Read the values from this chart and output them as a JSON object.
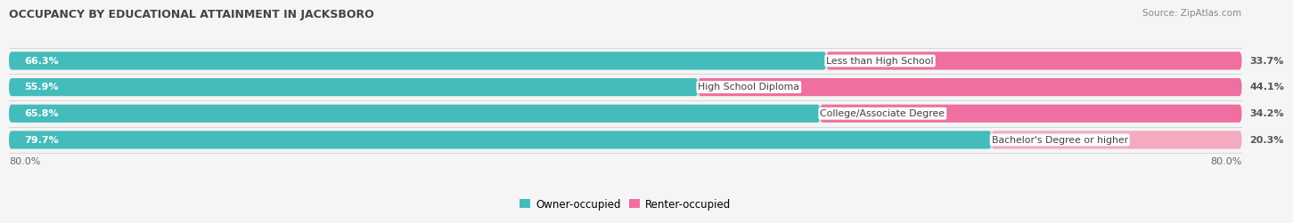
{
  "title": "OCCUPANCY BY EDUCATIONAL ATTAINMENT IN JACKSBORO",
  "source": "Source: ZipAtlas.com",
  "categories": [
    "Less than High School",
    "High School Diploma",
    "College/Associate Degree",
    "Bachelor's Degree or higher"
  ],
  "owner_values": [
    66.3,
    55.9,
    65.8,
    79.7
  ],
  "renter_values": [
    33.7,
    44.1,
    34.2,
    20.3
  ],
  "owner_color": "#45BCBC",
  "renter_colors": [
    "#EE6FA0",
    "#EE6FA0",
    "#EE6FA0",
    "#F4AABF"
  ],
  "bar_bg_color": "#E4E4E4",
  "background_color": "#F5F5F5",
  "title_color": "#444444",
  "source_color": "#888888",
  "label_color": "#555555",
  "pct_color_owner": "#FFFFFF",
  "pct_color_renter": "#FFFFFF",
  "pct_color_renter_last": "#888888",
  "x_min": -80,
  "x_max": 80,
  "x_tick_left": "80.0%",
  "x_tick_right": "80.0%"
}
